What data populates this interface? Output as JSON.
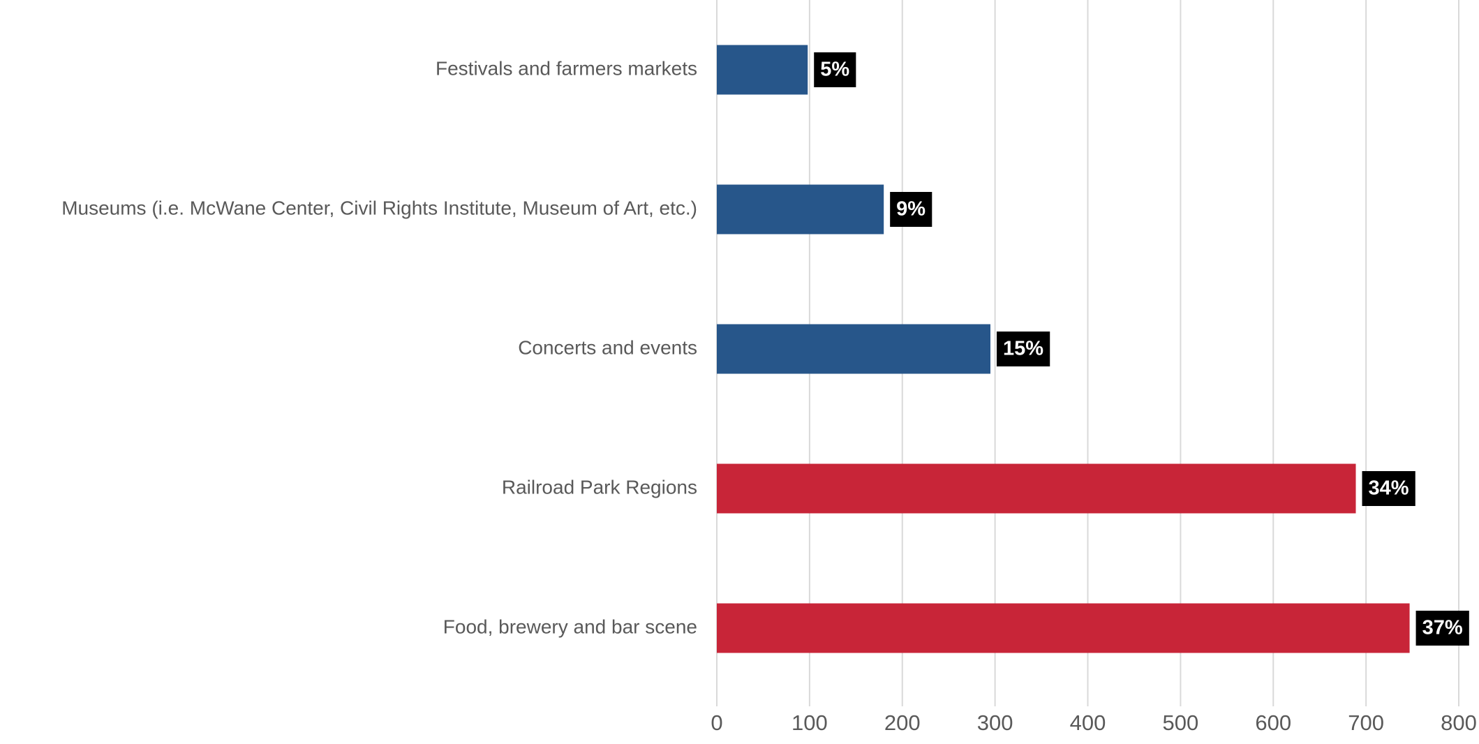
{
  "chart_data": {
    "type": "barh",
    "categories": [
      "Festivals and farmers markets",
      "Museums (i.e. McWane Center, Civil Rights Institute, Museum of Art, etc.)",
      "Concerts and events",
      "Railroad Park Regions",
      "Food, brewery and bar scene"
    ],
    "values": [
      98,
      180,
      295,
      689,
      747
    ],
    "value_labels": [
      "5%",
      "9%",
      "15%",
      "34%",
      "37%"
    ],
    "colors": [
      "#27568a",
      "#27568a",
      "#27568a",
      "#c82538",
      "#c82538"
    ],
    "xlim": [
      0,
      800
    ],
    "xticks": [
      0,
      100,
      200,
      300,
      400,
      500,
      600,
      700,
      800
    ],
    "grid": true
  }
}
